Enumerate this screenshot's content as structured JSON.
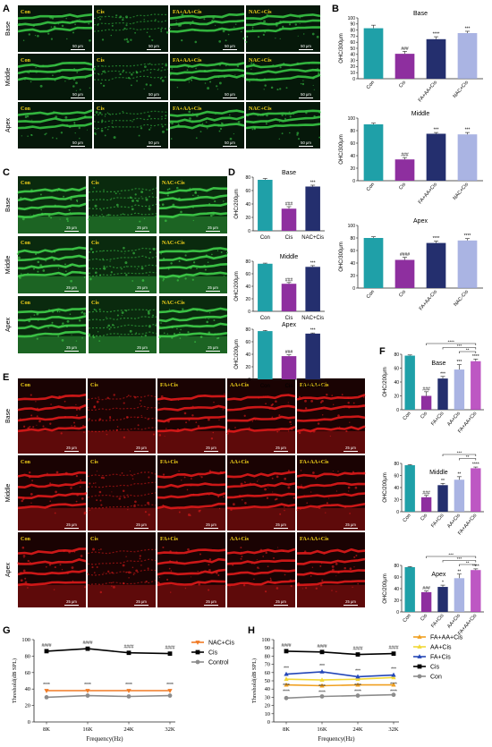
{
  "panels": {
    "A": {
      "letter": "A",
      "columns": [
        "Con",
        "Cis",
        "FA+AA+Cis",
        "NAC+Cis"
      ],
      "rows": [
        "Base",
        "Middle",
        "Apex"
      ],
      "scale": "50 μm"
    },
    "C": {
      "letter": "C",
      "columns": [
        "Con",
        "Cis",
        "NAC+Cis"
      ],
      "rows": [
        "Base",
        "Middle",
        "Apex"
      ],
      "scale": "25 μm"
    },
    "E": {
      "letter": "E",
      "columns": [
        "Con",
        "Cis",
        "FA+Cis",
        "AA+Cis",
        "FA+AA+Cis"
      ],
      "rows": [
        "Base",
        "Middle",
        "Apex"
      ],
      "scale": "25 μm"
    },
    "B": {
      "letter": "B"
    },
    "D": {
      "letter": "D"
    },
    "F": {
      "letter": "F"
    },
    "G": {
      "letter": "G"
    },
    "H": {
      "letter": "H"
    }
  },
  "chart_data": [
    {
      "id": "B-base",
      "type": "bar",
      "title": "Base",
      "ylabel": "OHC/300μm",
      "categories": [
        "Con",
        "Cis",
        "FA+AA+Cis",
        "NAC+Cis"
      ],
      "values": [
        83,
        41,
        65,
        75
      ],
      "errors": [
        5,
        4,
        4,
        3
      ],
      "annotations": [
        "",
        "###",
        "****",
        "***"
      ],
      "ylim": [
        0,
        100
      ],
      "yticks": [
        "0",
        "10",
        "20",
        "30",
        "40",
        "50",
        "60",
        "70",
        "80",
        "90",
        "100"
      ],
      "colors": [
        "#1fa0a8",
        "#8e2f9f",
        "#242f6e",
        "#9ba7de"
      ]
    },
    {
      "id": "B-middle",
      "type": "bar",
      "title": "Middle",
      "ylabel": "OHC/300μm",
      "categories": [
        "Con",
        "Cis",
        "FA+AA+Cis",
        "NAC+Cis"
      ],
      "values": [
        90,
        34,
        75,
        74
      ],
      "errors": [
        2,
        3,
        2,
        3
      ],
      "annotations": [
        "",
        "###",
        "***",
        "***"
      ],
      "ylim": [
        0,
        100
      ],
      "yticks": [
        "0",
        "20",
        "40",
        "60",
        "80",
        "100"
      ],
      "colors": [
        "#1fa0a8",
        "#8e2f9f",
        "#242f6e",
        "#9ba7de"
      ]
    },
    {
      "id": "B-apex",
      "type": "bar",
      "title": "Apex",
      "ylabel": "OHC/300μm",
      "categories": [
        "Con",
        "Cis",
        "FA+AA-Cis",
        "NAC-Cis"
      ],
      "values": [
        80,
        45,
        72,
        76
      ],
      "errors": [
        2,
        4,
        3,
        3
      ],
      "annotations": [
        "",
        "####",
        "****",
        "****"
      ],
      "ylim": [
        0,
        100
      ],
      "yticks": [
        "0",
        "20",
        "40",
        "60",
        "80",
        "100"
      ],
      "colors": [
        "#1fa0a8",
        "#8e2f9f",
        "#242f6e",
        "#9ba7de"
      ]
    },
    {
      "id": "D-base",
      "type": "bar",
      "title": "Base",
      "ylabel": "OHC/200μm",
      "categories": [
        "Con",
        "Cis",
        "NAC+Cis"
      ],
      "values": [
        76,
        33,
        66
      ],
      "errors": [
        2,
        3,
        2
      ],
      "annotations": [
        "",
        "###",
        "***"
      ],
      "ylim": [
        0,
        80
      ],
      "yticks": [
        "0",
        "20",
        "40",
        "60",
        "80"
      ],
      "colors": [
        "#1fa0a8",
        "#8e2f9f",
        "#242f6e"
      ]
    },
    {
      "id": "D-middle",
      "type": "bar",
      "title": "Middle",
      "ylabel": "OHC/200μm",
      "categories": [
        "Con",
        "Cis",
        "NAC+Cis"
      ],
      "values": [
        76,
        44,
        71
      ],
      "errors": [
        1,
        2,
        2
      ],
      "annotations": [
        "",
        "###",
        "***"
      ],
      "ylim": [
        0,
        80
      ],
      "yticks": [
        "0",
        "20",
        "40",
        "60",
        "80"
      ],
      "colors": [
        "#1fa0a8",
        "#8e2f9f",
        "#242f6e"
      ]
    },
    {
      "id": "D-apex",
      "type": "bar",
      "title": "Apex",
      "ylabel": "OHC/200μm",
      "categories": [
        "Con",
        "Cis",
        "NAC+Cis"
      ],
      "values": [
        77,
        37,
        73
      ],
      "errors": [
        1,
        2,
        1
      ],
      "annotations": [
        "",
        "###",
        "***"
      ],
      "ylim": [
        0,
        80
      ],
      "yticks": [
        "0",
        "20",
        "40",
        "60",
        "80"
      ],
      "colors": [
        "#1fa0a8",
        "#8e2f9f",
        "#242f6e"
      ]
    },
    {
      "id": "F-base",
      "type": "bar",
      "title": "Base",
      "ylabel": "OHC/200μm",
      "categories": [
        "Con",
        "Cis",
        "FA+Cis",
        "AA+Cis",
        "FA+AA+Cis"
      ],
      "values": [
        78,
        20,
        45,
        58,
        70
      ],
      "errors": [
        1,
        6,
        3,
        7,
        3
      ],
      "annotations": [
        "",
        "###",
        "***",
        "***",
        "****"
      ],
      "brackets": [
        [
          "Cis",
          "FA+AA+Cis",
          "****"
        ],
        [
          "FA+Cis",
          "FA+AA+Cis",
          "***"
        ],
        [
          "AA+Cis",
          "FA+AA+Cis",
          "**"
        ]
      ],
      "ylim": [
        0,
        80
      ],
      "yticks": [
        "0",
        "20",
        "40",
        "60",
        "80"
      ],
      "colors": [
        "#1fa0a8",
        "#8e2f9f",
        "#242f6e",
        "#9ba7de",
        "#b23ab8"
      ]
    },
    {
      "id": "F-middle",
      "type": "bar",
      "title": "Middle",
      "ylabel": "OHC/200μm",
      "categories": [
        "Con",
        "Cis",
        "FA+Cis",
        "AA+Cis",
        "FA+AA+Cis"
      ],
      "values": [
        77,
        24,
        44,
        53,
        72
      ],
      "errors": [
        1,
        3,
        3,
        5,
        2
      ],
      "annotations": [
        "",
        "###",
        "**",
        "**",
        "****"
      ],
      "brackets": [
        [
          "FA+Cis",
          "FA+AA+Cis",
          "***"
        ],
        [
          "AA+Cis",
          "FA+AA+Cis",
          "**"
        ]
      ],
      "ylim": [
        0,
        80
      ],
      "yticks": [
        "0",
        "20",
        "40",
        "60",
        "80"
      ],
      "colors": [
        "#1fa0a8",
        "#8e2f9f",
        "#242f6e",
        "#9ba7de",
        "#b23ab8"
      ]
    },
    {
      "id": "F-apex",
      "type": "bar",
      "title": "Apex",
      "ylabel": "OHC/200μm",
      "categories": [
        "Con",
        "Cis",
        "FA+Cis",
        "AA+Cis",
        "FA+AA+Cis"
      ],
      "values": [
        77,
        34,
        43,
        58,
        72
      ],
      "errors": [
        1,
        2,
        3,
        7,
        2
      ],
      "annotations": [
        "",
        "###",
        "*",
        "**",
        "****"
      ],
      "brackets": [
        [
          "Cis",
          "FA+AA+Cis",
          "***"
        ],
        [
          "FA+Cis",
          "FA+AA+Cis",
          "***"
        ],
        [
          "AA+Cis",
          "FA+AA+Cis",
          "**"
        ]
      ],
      "ylim": [
        0,
        80
      ],
      "yticks": [
        "0",
        "20",
        "40",
        "60",
        "80"
      ],
      "colors": [
        "#1fa0a8",
        "#8e2f9f",
        "#242f6e",
        "#9ba7de",
        "#b23ab8"
      ]
    },
    {
      "id": "G",
      "type": "line",
      "xlabel": "Frequency(Hz)",
      "ylabel": "Threshold(dB SPL)",
      "categories": [
        "8K",
        "16K",
        "24K",
        "32K"
      ],
      "ylim": [
        0,
        100
      ],
      "yticks": [
        "0",
        "20",
        "40",
        "60",
        "80",
        "100"
      ],
      "series": [
        {
          "name": "NAC+Cis",
          "values": [
            38,
            38,
            38,
            38
          ],
          "color": "#f07a24",
          "marker": "triangle-down",
          "annot": "****",
          "annotColor": "#111111",
          "annotPos": "above"
        },
        {
          "name": "Cis",
          "values": [
            86,
            89,
            84,
            83
          ],
          "color": "#000000",
          "marker": "square",
          "annot": "####",
          "annotColor": "#111111",
          "annotPos": "above"
        },
        {
          "name": "Control",
          "values": [
            30,
            32,
            31,
            32
          ],
          "color": "#8c8c8c",
          "marker": "circle",
          "annot": "",
          "annotColor": "#111111",
          "annotPos": "above"
        }
      ]
    },
    {
      "id": "H",
      "type": "line",
      "xlabel": "Frequency(Hz)",
      "ylabel": "Threshold(dB SPL)",
      "categories": [
        "8K",
        "16K",
        "24K",
        "32K"
      ],
      "ylim": [
        0,
        100
      ],
      "yticks": [
        "0",
        "10",
        "20",
        "30",
        "40",
        "50",
        "60",
        "70",
        "80",
        "90",
        "100"
      ],
      "series": [
        {
          "name": "FA+AA+Cis",
          "values": [
            45,
            44,
            45,
            45
          ],
          "color": "#f0a020",
          "marker": "triangle",
          "annot": "****",
          "annotColor": "#111111",
          "annotPos": "below"
        },
        {
          "name": "AA+Cis",
          "values": [
            52,
            51,
            52,
            54
          ],
          "color": "#f2d838",
          "marker": "triangle",
          "annot": "****",
          "annotColor": "#111111",
          "annotPos": "below"
        },
        {
          "name": "FA+Cis",
          "values": [
            58,
            61,
            55,
            57
          ],
          "color": "#2447b8",
          "marker": "triangle",
          "annot": "***",
          "annotColor": "#111111",
          "annotPos": "above"
        },
        {
          "name": "Cis",
          "values": [
            86,
            85,
            82,
            83
          ],
          "color": "#000000",
          "marker": "square",
          "annot": "####",
          "annotColor": "#111111",
          "annotPos": "above"
        },
        {
          "name": "Con",
          "values": [
            29,
            31,
            32,
            33
          ],
          "color": "#8c8c8c",
          "marker": "circle",
          "annot": "",
          "annotColor": "#111111",
          "annotPos": "above"
        }
      ]
    }
  ]
}
